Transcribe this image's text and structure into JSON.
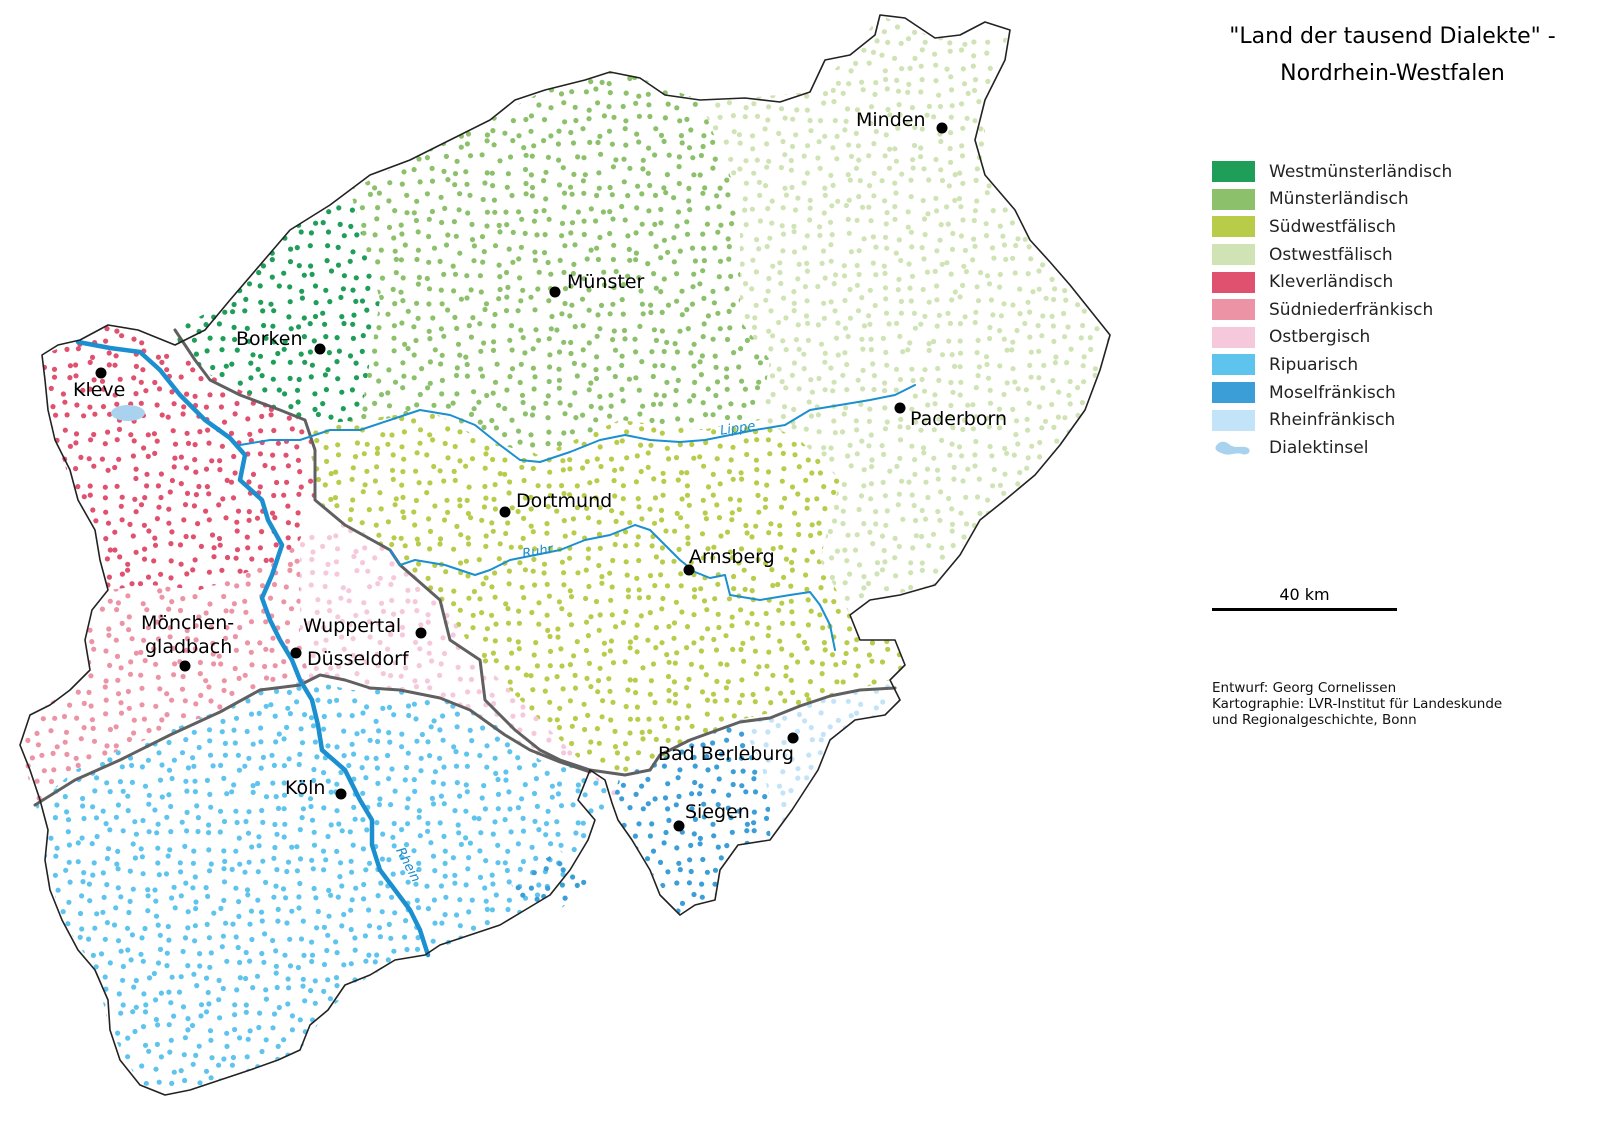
{
  "title": {
    "line1": "\"Land der tausend Dialekte\" -",
    "line2": "Nordrhein-Westfalen"
  },
  "legend": [
    {
      "label": "Westmünsterländisch",
      "color": "#1f9e5a"
    },
    {
      "label": "Münsterländisch",
      "color": "#8cc06a"
    },
    {
      "label": "Südwestfälisch",
      "color": "#b9cc4a"
    },
    {
      "label": "Ostwestfälisch",
      "color": "#cfe3b5"
    },
    {
      "label": "Kleverländisch",
      "color": "#e0506f"
    },
    {
      "label": "Südniederfränkisch",
      "color": "#ec93a6"
    },
    {
      "label": "Ostbergisch",
      "color": "#f6c8dc"
    },
    {
      "label": "Ripuarisch",
      "color": "#5ec4ee"
    },
    {
      "label": "Moselfränkisch",
      "color": "#3c9ed6"
    },
    {
      "label": "Rheinfränkisch",
      "color": "#c2e3f8"
    },
    {
      "label": "Dialektinsel",
      "color": "#a8d2ee"
    }
  ],
  "scale": {
    "label": "40 km"
  },
  "credits": {
    "line1": "Entwurf: Georg Cornelissen",
    "line2": "Kartographie: LVR-Institut für Landeskunde",
    "line3": "und Regionalgeschichte, Bonn"
  },
  "cities": {
    "minden": "Minden",
    "muenster": "Münster",
    "borken": "Borken",
    "kleve": "Kleve",
    "paderborn": "Paderborn",
    "dortmund": "Dortmund",
    "arnsberg": "Arnsberg",
    "moenchen1": "Mönchen-",
    "moenchen2": "gladbach",
    "wuppertal": "Wuppertal",
    "duesseldorf": "Düsseldorf",
    "bad_berleburg": "Bad Berleburg",
    "koeln": "Köln",
    "siegen": "Siegen"
  },
  "rivers": {
    "lippe": "Lippe",
    "ruhr": "Ruhr",
    "rhein": "Rhein"
  }
}
